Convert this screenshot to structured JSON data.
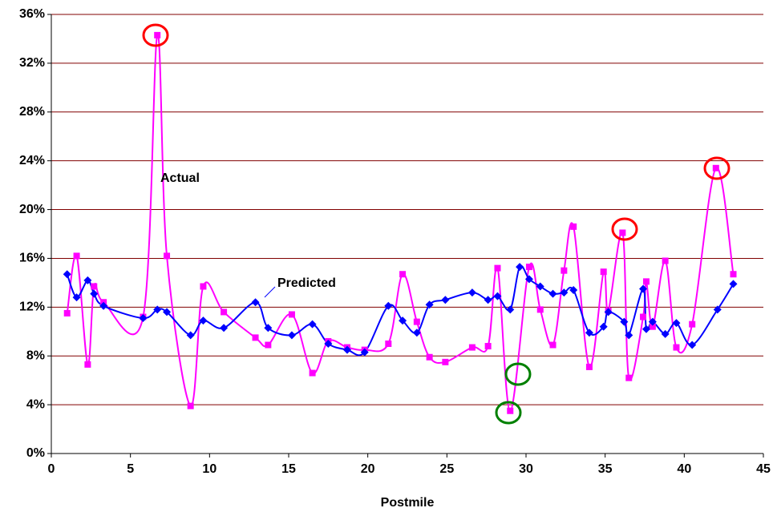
{
  "chart_data": {
    "type": "line",
    "x_label": "Postmile",
    "xlim": [
      0,
      45
    ],
    "xticks": [
      0,
      5,
      10,
      15,
      20,
      25,
      30,
      35,
      40,
      45
    ],
    "ylim": [
      0,
      36
    ],
    "yticks": [
      {
        "value": 0,
        "label": "0%"
      },
      {
        "value": 4,
        "label": "4%"
      },
      {
        "value": 8,
        "label": "8%"
      },
      {
        "value": 12,
        "label": "12%"
      },
      {
        "value": 16,
        "label": "16%"
      },
      {
        "value": 20,
        "label": "20%"
      },
      {
        "value": 24,
        "label": "24%"
      },
      {
        "value": 28,
        "label": "28%"
      },
      {
        "value": 32,
        "label": "32%"
      },
      {
        "value": 36,
        "label": "36%"
      }
    ],
    "grid": true,
    "grid_color": "#800000",
    "series": [
      {
        "name": "Actual",
        "color": "#ff00ff",
        "marker": "square",
        "x": [
          1.0,
          1.6,
          2.3,
          2.7,
          3.3,
          5.8,
          6.7,
          7.3,
          8.8,
          9.6,
          10.9,
          12.9,
          13.7,
          15.2,
          16.5,
          17.5,
          18.7,
          19.8,
          21.3,
          22.2,
          23.1,
          23.9,
          24.9,
          26.6,
          27.6,
          28.2,
          29.0,
          30.2,
          30.9,
          31.7,
          32.4,
          33.0,
          34.0,
          34.9,
          35.2,
          36.1,
          36.5,
          37.4,
          37.6,
          38.0,
          38.8,
          39.5,
          40.5,
          42.0,
          43.1
        ],
        "values": [
          11.5,
          16.2,
          7.3,
          13.7,
          12.4,
          11.2,
          34.3,
          16.2,
          3.9,
          13.7,
          11.6,
          9.5,
          8.9,
          11.4,
          6.6,
          9.2,
          8.7,
          8.5,
          9.0,
          14.7,
          10.8,
          7.9,
          7.5,
          8.7,
          8.8,
          15.2,
          3.5,
          15.3,
          11.8,
          8.9,
          15.0,
          18.6,
          7.1,
          14.9,
          11.7,
          18.1,
          6.2,
          11.2,
          14.1,
          10.4,
          15.8,
          8.7,
          10.6,
          23.4,
          14.7
        ]
      },
      {
        "name": "Predicted",
        "color": "#0000ff",
        "marker": "diamond",
        "x": [
          1.0,
          1.6,
          2.3,
          2.7,
          3.3,
          5.8,
          6.7,
          7.3,
          8.8,
          9.6,
          10.9,
          12.9,
          13.7,
          15.2,
          16.5,
          17.5,
          18.7,
          19.8,
          21.3,
          22.2,
          23.1,
          23.9,
          24.9,
          26.6,
          27.6,
          28.2,
          29.0,
          29.6,
          30.2,
          30.9,
          31.7,
          32.4,
          33.0,
          34.0,
          34.9,
          35.2,
          36.2,
          36.5,
          37.4,
          37.6,
          38.0,
          38.8,
          39.5,
          40.5,
          42.1,
          43.1
        ],
        "values": [
          14.7,
          12.8,
          14.2,
          13.1,
          12.1,
          11.1,
          11.8,
          11.6,
          9.7,
          10.9,
          10.3,
          12.4,
          10.3,
          9.7,
          10.6,
          9.0,
          8.5,
          8.3,
          12.1,
          10.9,
          9.9,
          12.2,
          12.6,
          13.2,
          12.6,
          12.9,
          11.8,
          15.3,
          14.3,
          13.7,
          13.1,
          13.2,
          13.4,
          9.9,
          10.4,
          11.6,
          10.8,
          9.7,
          13.5,
          10.2,
          10.8,
          9.8,
          10.7,
          8.9,
          11.8,
          13.9
        ]
      }
    ]
  }
}
